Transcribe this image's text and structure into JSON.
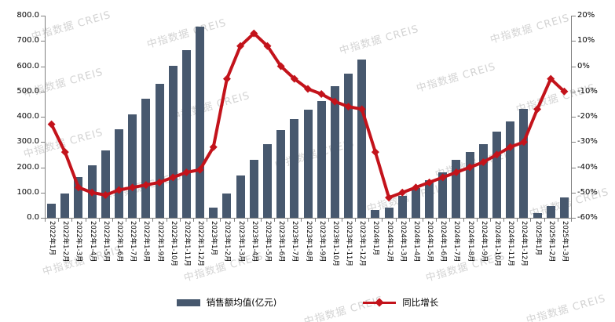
{
  "watermark_text": "中指数据 CREIS",
  "colors": {
    "bar": "#47586E",
    "line": "#C3131B",
    "axis": "#808080",
    "text": "#000000",
    "watermark": "#CCCCCC"
  },
  "legend": {
    "bar_label": "销售额均值(亿元)",
    "line_label": "同比增长"
  },
  "chart_data": {
    "type": "bar",
    "subtype": "bar+line combo, dual axis",
    "grid": false,
    "legend_position": "bottom",
    "categories": [
      "2022年1月",
      "2022年1-2月",
      "2022年1-3月",
      "2022年1-4月",
      "2022年1-5月",
      "2022年1-6月",
      "2022年1-7月",
      "2022年1-8月",
      "2022年1-9月",
      "2022年1-10月",
      "2022年1-11月",
      "2022年1-12月",
      "2023年1月",
      "2023年1-2月",
      "2023年1-3月",
      "2023年1-4月",
      "2023年1-5月",
      "2023年1-6月",
      "2023年1-7月",
      "2023年1-8月",
      "2023年1-9月",
      "2023年1-10月",
      "2023年1-11月",
      "2023年1-12月",
      "2024年1月",
      "2024年1-2月",
      "2024年1-3月",
      "2024年1-4月",
      "2024年1-5月",
      "2024年1-6月",
      "2024年1-7月",
      "2024年1-8月",
      "2024年1-9月",
      "2024年1-10月",
      "2024年1-11月",
      "2024年1-12月",
      "2025年1月",
      "2025年1-2月",
      "2025年1-3月"
    ],
    "series": [
      {
        "name": "销售额均值(亿元)",
        "type": "bar",
        "axis": "left",
        "values": [
          55,
          96,
          160,
          208,
          267,
          350,
          409,
          471,
          530,
          602,
          664,
          757,
          40,
          95,
          168,
          230,
          290,
          347,
          392,
          429,
          462,
          520,
          570,
          625,
          30,
          40,
          88,
          118,
          150,
          180,
          230,
          260,
          290,
          340,
          382,
          430,
          20,
          45,
          80
        ]
      },
      {
        "name": "同比增长",
        "type": "line",
        "axis": "right",
        "unit": "%",
        "values": [
          -23,
          -34,
          -48,
          -50,
          -51,
          -49,
          -48,
          -47,
          -46,
          -44,
          -42,
          -41,
          -32,
          -5,
          8,
          13,
          8,
          0,
          -5,
          -9,
          -11,
          -14,
          -16,
          -17,
          -34,
          -52,
          -50,
          -48,
          -46,
          -44,
          -42,
          -40,
          -38,
          -35,
          -32,
          -30,
          -17,
          -5,
          -10
        ]
      }
    ],
    "left_axis": {
      "min": 0,
      "max": 800,
      "step": 100,
      "tick_labels": [
        "0.0",
        "100.0",
        "200.0",
        "300.0",
        "400.0",
        "500.0",
        "600.0",
        "700.0",
        "800.0"
      ]
    },
    "right_axis": {
      "min": -60,
      "max": 20,
      "step": 10,
      "tick_labels": [
        "20%",
        "10%",
        "0%",
        "-10%",
        "-20%",
        "-30%",
        "-40%",
        "-50%",
        "-60%"
      ]
    }
  }
}
